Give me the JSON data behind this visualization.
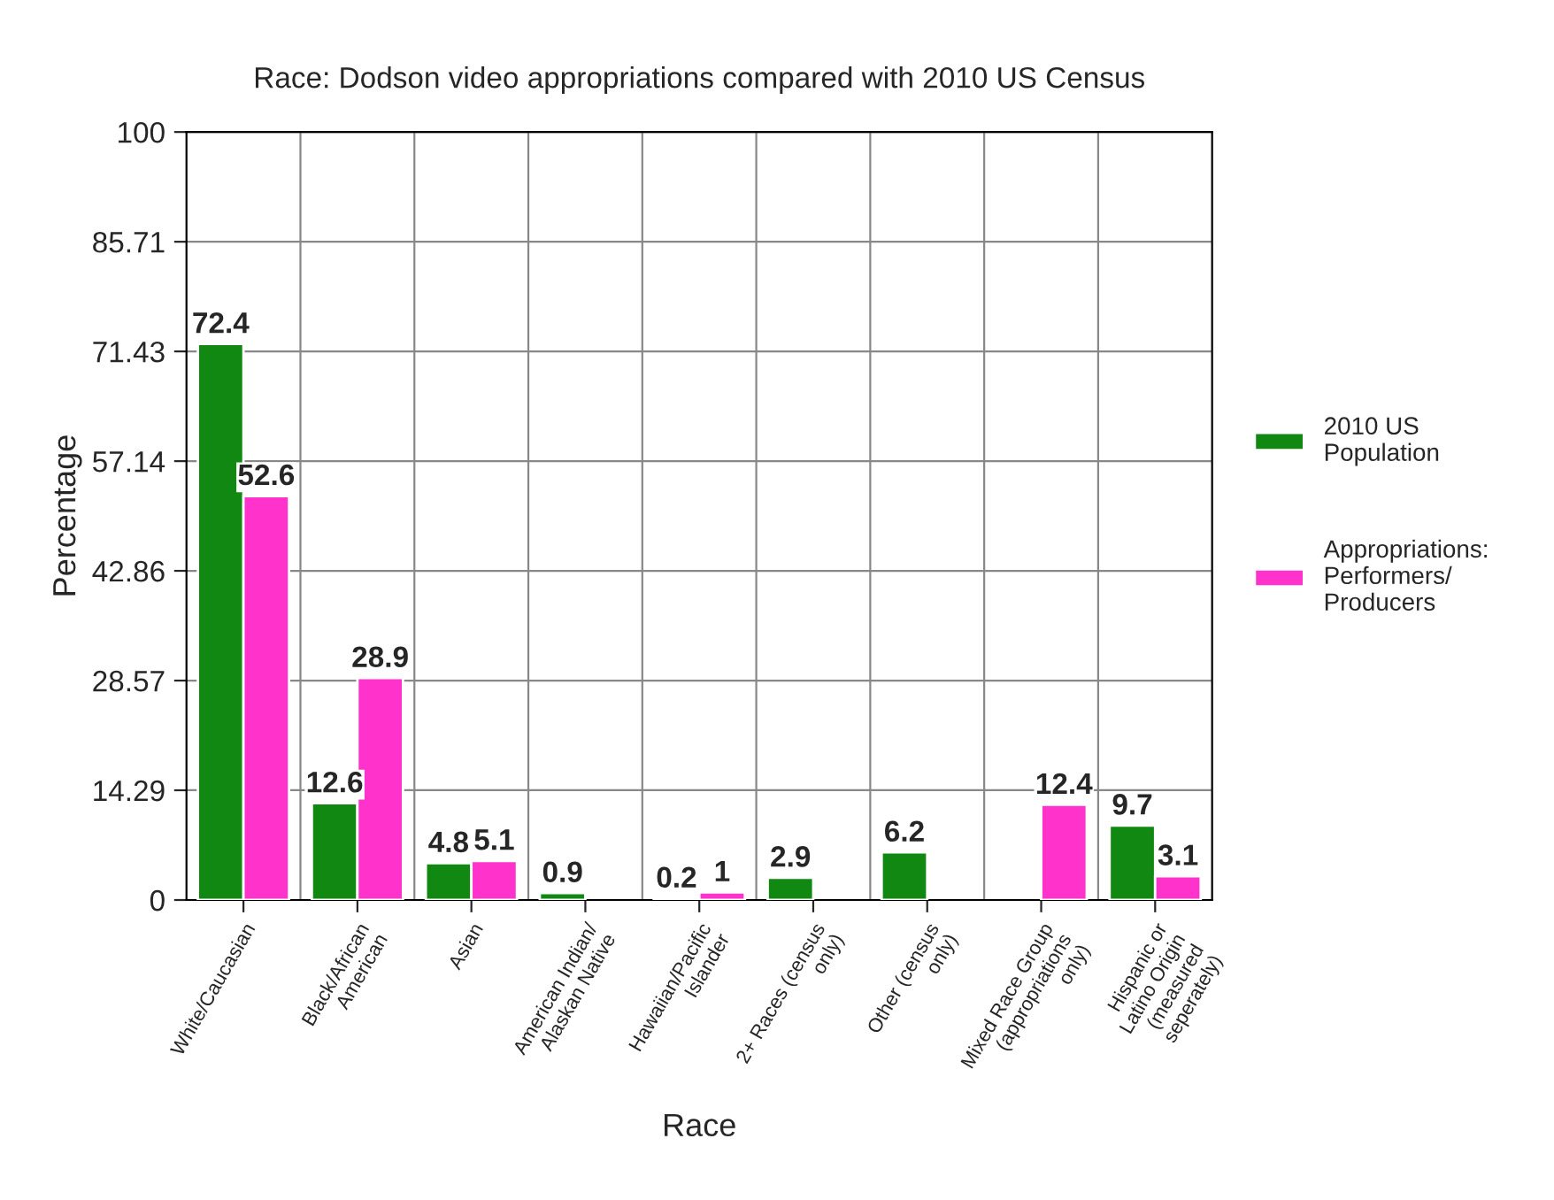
{
  "chart_data": {
    "type": "bar",
    "title": "Race: Dodson video appropriations compared with 2010 US Census",
    "xlabel": "Race",
    "ylabel": "Percentage",
    "categories": [
      "White/Caucasian",
      "Black/African American",
      "Asian",
      "American Indian/ Alaskan Native",
      "Hawaiian/Pacific Islander",
      "2+ Races (census only)",
      "Other (census only)",
      "Mixed Race Group (appropriations only)",
      "Hispanic or Latino Origin (measured seperately)"
    ],
    "series": [
      {
        "name": "2010 US Population",
        "color": "#118811",
        "values": [
          72.4,
          12.6,
          4.8,
          0.9,
          0.2,
          2.9,
          6.2,
          null,
          9.7
        ]
      },
      {
        "name": "Appropriations: Performers/ Producers",
        "color": "#ff33cc",
        "values": [
          52.6,
          28.9,
          5.1,
          null,
          1,
          null,
          null,
          12.4,
          3.1
        ]
      }
    ],
    "ylim": [
      0,
      100
    ],
    "yticks": [
      0,
      14.29,
      28.57,
      42.86,
      57.14,
      71.43,
      85.71,
      100
    ],
    "grid": true,
    "legend": "right",
    "data_labels": true
  }
}
